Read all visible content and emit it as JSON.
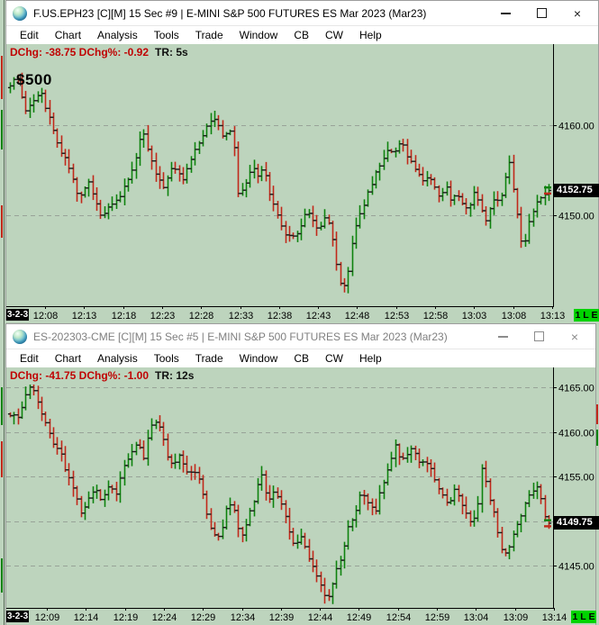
{
  "theme": {
    "chart_bg": "#bdd4bd",
    "up_color": "#0e820e",
    "down_color": "#c1281a",
    "bar_tick_color": "#1a1a1a",
    "grid_color": "#98a398",
    "axis_color": "#000000",
    "badge_green": "#00d300",
    "status_red": "#c00404",
    "last_badge_bg": "#000000",
    "last_badge_text": "#ffffff",
    "inactive_title": "#7f7f7f"
  },
  "windows": [
    {
      "title": "F.US.EPH23 [C][M]  15 Sec  #9 | E-MINI S&P 500 FUTURES ES Mar 2023 (Mar23)",
      "active": true,
      "menu": [
        "Edit",
        "Chart",
        "Analysis",
        "Tools",
        "Trade",
        "Window",
        "CB",
        "CW",
        "Help"
      ],
      "status_red": "DChg: -38.75 DChg%: -0.92",
      "status_black": "TR: 5s",
      "controls": {
        "minimize": "minimize",
        "maximize": "maximize",
        "close": "×"
      }
    },
    {
      "title": "ES-202303-CME [C][M]  15 Sec  #5 | E-MINI S&P 500 FUTURES ES Mar 2023 (Mar23)",
      "active": false,
      "menu": [
        "Edit",
        "Chart",
        "Analysis",
        "Tools",
        "Trade",
        "Window",
        "CB",
        "CW",
        "Help"
      ],
      "status_red": "DChg: -41.75 DChg%: -1.00",
      "status_black": "TR: 12s",
      "controls": {
        "minimize": "minimize",
        "maximize": "maximize",
        "close": "×"
      }
    }
  ],
  "chart_data": [
    {
      "type": "ohlc-bars",
      "symbol": "F.US.EPH23 [C][M]",
      "interval": "15 Sec",
      "description": "E-MINI S&P 500 FUTURES ES Mar 2023 (Mar23)",
      "annotation": "$500",
      "last_price": 4152.75,
      "last_price_label": "4152.75",
      "session_start_label": "3-2-3",
      "status_badge": "1 L E",
      "visible_price_range": [
        4140,
        4167
      ],
      "price_gridlines": [
        {
          "price": 4160,
          "label": "4160.00"
        },
        {
          "price": 4150,
          "label": "4150.00"
        }
      ],
      "time_ticks": [
        "12:08",
        "12:13",
        "12:18",
        "12:23",
        "12:28",
        "12:33",
        "12:38",
        "12:43",
        "12:48",
        "12:53",
        "12:58",
        "13:03",
        "13:08",
        "13:13"
      ],
      "price_path": [
        [
          0.003,
          4164.5
        ],
        [
          0.012,
          4165.5
        ],
        [
          0.028,
          4161.5
        ],
        [
          0.058,
          4163.5
        ],
        [
          0.087,
          4158
        ],
        [
          0.112,
          4155
        ],
        [
          0.128,
          4151.5
        ],
        [
          0.145,
          4154
        ],
        [
          0.167,
          4149.8
        ],
        [
          0.187,
          4151
        ],
        [
          0.203,
          4152
        ],
        [
          0.232,
          4156
        ],
        [
          0.245,
          4159.5
        ],
        [
          0.262,
          4156
        ],
        [
          0.273,
          4154
        ],
        [
          0.287,
          4153.2
        ],
        [
          0.303,
          4155.5
        ],
        [
          0.32,
          4154
        ],
        [
          0.337,
          4156.5
        ],
        [
          0.353,
          4158
        ],
        [
          0.37,
          4160.5
        ],
        [
          0.382,
          4160.8
        ],
        [
          0.395,
          4158.5
        ],
        [
          0.407,
          4159.8
        ],
        [
          0.417,
          4157
        ],
        [
          0.423,
          4152.5
        ],
        [
          0.437,
          4153.5
        ],
        [
          0.45,
          4155.8
        ],
        [
          0.462,
          4154
        ],
        [
          0.47,
          4155.5
        ],
        [
          0.483,
          4152
        ],
        [
          0.495,
          4150.2
        ],
        [
          0.512,
          4147.8
        ],
        [
          0.523,
          4147.5
        ],
        [
          0.537,
          4148.2
        ],
        [
          0.55,
          4150.8
        ],
        [
          0.562,
          4149.2
        ],
        [
          0.573,
          4148
        ],
        [
          0.587,
          4150
        ],
        [
          0.6,
          4147
        ],
        [
          0.607,
          4144
        ],
        [
          0.617,
          4141.5
        ],
        [
          0.625,
          4143
        ],
        [
          0.633,
          4146
        ],
        [
          0.645,
          4149.5
        ],
        [
          0.657,
          4151
        ],
        [
          0.667,
          4153
        ],
        [
          0.678,
          4154.5
        ],
        [
          0.69,
          4156
        ],
        [
          0.703,
          4157.2
        ],
        [
          0.715,
          4157
        ],
        [
          0.725,
          4158.5
        ],
        [
          0.733,
          4157
        ],
        [
          0.745,
          4156
        ],
        [
          0.757,
          4154.5
        ],
        [
          0.767,
          4153.8
        ],
        [
          0.778,
          4154.8
        ],
        [
          0.787,
          4153
        ],
        [
          0.798,
          4152
        ],
        [
          0.808,
          4153.5
        ],
        [
          0.82,
          4151.5
        ],
        [
          0.828,
          4152.8
        ],
        [
          0.84,
          4151
        ],
        [
          0.85,
          4150.5
        ],
        [
          0.862,
          4152.5
        ],
        [
          0.873,
          4151
        ],
        [
          0.883,
          4149.5
        ],
        [
          0.892,
          4150.8
        ],
        [
          0.9,
          4152
        ],
        [
          0.908,
          4151.5
        ],
        [
          0.917,
          4153
        ],
        [
          0.925,
          4156.3
        ],
        [
          0.932,
          4154
        ],
        [
          0.94,
          4151
        ],
        [
          0.947,
          4147.5
        ],
        [
          0.953,
          4146.5
        ],
        [
          0.962,
          4149
        ],
        [
          0.97,
          4150.5
        ],
        [
          0.978,
          4151.5
        ],
        [
          0.987,
          4152.2
        ],
        [
          0.995,
          4152.6
        ],
        [
          1.0,
          4152.75
        ]
      ]
    },
    {
      "type": "ohlc-bars",
      "symbol": "ES-202303-CME [C][M]",
      "interval": "15 Sec",
      "description": "E-MINI S&P 500 FUTURES ES Mar 2023 (Mar23)",
      "annotation": "",
      "last_price": 4149.75,
      "last_price_label": "4149.75",
      "session_start_label": "3-2-3",
      "status_badge": "1 L E",
      "visible_price_range": [
        4141,
        4166
      ],
      "price_gridlines": [
        {
          "price": 4165,
          "label": "4165.00"
        },
        {
          "price": 4160,
          "label": "4160.00"
        },
        {
          "price": 4155,
          "label": "4155.00"
        },
        {
          "price": 4150,
          "label": "4150.00"
        },
        {
          "price": 4145,
          "label": "4145.00"
        }
      ],
      "time_ticks": [
        "12:09",
        "12:14",
        "12:19",
        "12:24",
        "12:29",
        "12:34",
        "12:39",
        "12:44",
        "12:49",
        "12:54",
        "12:59",
        "13:04",
        "13:09",
        "13:14"
      ],
      "price_path": [
        [
          0.0,
          4162
        ],
        [
          0.012,
          4161.5
        ],
        [
          0.023,
          4163
        ],
        [
          0.037,
          4165.3
        ],
        [
          0.05,
          4163.5
        ],
        [
          0.067,
          4161
        ],
        [
          0.083,
          4158.3
        ],
        [
          0.095,
          4157.5
        ],
        [
          0.107,
          4155
        ],
        [
          0.12,
          4153
        ],
        [
          0.133,
          4150.5
        ],
        [
          0.145,
          4152.5
        ],
        [
          0.158,
          4153.5
        ],
        [
          0.17,
          4152
        ],
        [
          0.183,
          4154
        ],
        [
          0.197,
          4153
        ],
        [
          0.212,
          4156.5
        ],
        [
          0.223,
          4157.5
        ],
        [
          0.237,
          4159
        ],
        [
          0.248,
          4157
        ],
        [
          0.258,
          4160
        ],
        [
          0.27,
          4161.3
        ],
        [
          0.282,
          4160
        ],
        [
          0.292,
          4157
        ],
        [
          0.303,
          4156
        ],
        [
          0.315,
          4157.5
        ],
        [
          0.328,
          4155.5
        ],
        [
          0.342,
          4155.8
        ],
        [
          0.353,
          4154.5
        ],
        [
          0.365,
          4150.5
        ],
        [
          0.378,
          4148.5
        ],
        [
          0.39,
          4148.2
        ],
        [
          0.403,
          4152
        ],
        [
          0.415,
          4151.5
        ],
        [
          0.427,
          4148
        ],
        [
          0.44,
          4150
        ],
        [
          0.453,
          4152.5
        ],
        [
          0.465,
          4155.5
        ],
        [
          0.478,
          4152
        ],
        [
          0.492,
          4153.5
        ],
        [
          0.503,
          4152
        ],
        [
          0.517,
          4149
        ],
        [
          0.528,
          4147
        ],
        [
          0.542,
          4148.5
        ],
        [
          0.553,
          4146
        ],
        [
          0.567,
          4144.3
        ],
        [
          0.578,
          4142.5
        ],
        [
          0.59,
          4141.3
        ],
        [
          0.603,
          4144
        ],
        [
          0.617,
          4146.5
        ],
        [
          0.628,
          4149.5
        ],
        [
          0.642,
          4151
        ],
        [
          0.653,
          4153.5
        ],
        [
          0.667,
          4152
        ],
        [
          0.678,
          4151
        ],
        [
          0.69,
          4154
        ],
        [
          0.703,
          4156
        ],
        [
          0.715,
          4158.8
        ],
        [
          0.725,
          4157
        ],
        [
          0.737,
          4157.5
        ],
        [
          0.748,
          4158.3
        ],
        [
          0.758,
          4156.5
        ],
        [
          0.77,
          4157
        ],
        [
          0.782,
          4155.5
        ],
        [
          0.792,
          4154
        ],
        [
          0.803,
          4153
        ],
        [
          0.815,
          4151.5
        ],
        [
          0.825,
          4153.8
        ],
        [
          0.837,
          4152
        ],
        [
          0.848,
          4151
        ],
        [
          0.858,
          4149.5
        ],
        [
          0.867,
          4151
        ],
        [
          0.875,
          4156.3
        ],
        [
          0.883,
          4154.5
        ],
        [
          0.892,
          4152
        ],
        [
          0.9,
          4150.5
        ],
        [
          0.908,
          4147.5
        ],
        [
          0.917,
          4145.8
        ],
        [
          0.925,
          4147
        ],
        [
          0.937,
          4149
        ],
        [
          0.948,
          4150.5
        ],
        [
          0.958,
          4152
        ],
        [
          0.97,
          4153.5
        ],
        [
          0.978,
          4153.8
        ],
        [
          0.987,
          4152
        ],
        [
          0.995,
          4150.2
        ],
        [
          1.0,
          4149.75
        ]
      ]
    }
  ]
}
